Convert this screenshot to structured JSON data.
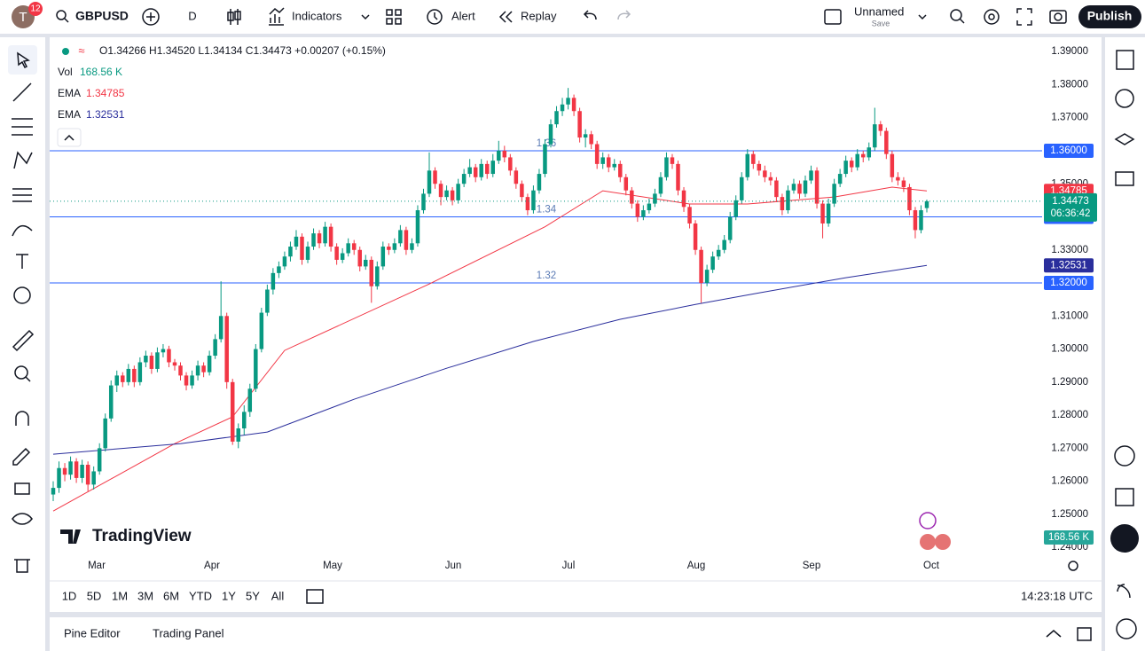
{
  "header": {
    "avatar": "T",
    "badge": "12",
    "symbol": "GBPUSD",
    "interval": "D",
    "indicators": "Indicators",
    "alert": "Alert",
    "replay": "Replay",
    "layout_name": "Unnamed",
    "layout_status": "Save",
    "publish": "Publish"
  },
  "legend": {
    "ohlc": "O1.34266 H1.34520 L1.34134 C1.34473 +0.00207 (+0.15%)",
    "volume": {
      "label": "Vol",
      "value": "168.56 K"
    },
    "ema": [
      {
        "label": "EMA",
        "value": "1.34785",
        "color": "#f23645"
      },
      {
        "label": "EMA",
        "value": "1.32531",
        "color": "#2a2e9c"
      }
    ]
  },
  "chart_data": {
    "type": "candlestick",
    "ylim": [
      1.2379,
      1.3938
    ],
    "yticks": [
      {
        "value": 1.39,
        "label": "1.39000"
      },
      {
        "value": 1.38,
        "label": "1.38000"
      },
      {
        "value": 1.37,
        "label": "1.37000"
      },
      {
        "value": 1.35,
        "label": "1.35000"
      },
      {
        "value": 1.33,
        "label": "1.33000"
      },
      {
        "value": 1.31,
        "label": "1.31000"
      },
      {
        "value": 1.3,
        "label": "1.30000"
      },
      {
        "value": 1.29,
        "label": "1.29000"
      },
      {
        "value": 1.28,
        "label": "1.28000"
      },
      {
        "value": 1.27,
        "label": "1.27000"
      },
      {
        "value": 1.26,
        "label": "1.26000"
      },
      {
        "value": 1.25,
        "label": "1.25000"
      },
      {
        "value": 1.24,
        "label": "1.24000"
      }
    ],
    "x_labels": [
      "Mar",
      "Apr",
      "May",
      "Jun",
      "Jul",
      "Aug",
      "Sep",
      "Oct"
    ],
    "up_color": "#089981",
    "down_color": "#f23645",
    "candles": [
      [
        1.256,
        1.26,
        1.254,
        1.258
      ],
      [
        1.258,
        1.266,
        1.2565,
        1.264
      ],
      [
        1.264,
        1.2655,
        1.26,
        1.262
      ],
      [
        1.262,
        1.2675,
        1.2605,
        1.266
      ],
      [
        1.266,
        1.267,
        1.2595,
        1.261
      ],
      [
        1.261,
        1.2665,
        1.2595,
        1.265
      ],
      [
        1.265,
        1.266,
        1.257,
        1.259
      ],
      [
        1.259,
        1.2645,
        1.2575,
        1.263
      ],
      [
        1.263,
        1.2715,
        1.262,
        1.27
      ],
      [
        1.27,
        1.2805,
        1.269,
        1.279
      ],
      [
        1.279,
        1.2905,
        1.278,
        1.289
      ],
      [
        1.289,
        1.2935,
        1.287,
        1.292
      ],
      [
        1.292,
        1.293,
        1.2885,
        1.29
      ],
      [
        1.29,
        1.2955,
        1.289,
        1.294
      ],
      [
        1.294,
        1.295,
        1.2885,
        1.29
      ],
      [
        1.29,
        1.2975,
        1.289,
        1.296
      ],
      [
        1.296,
        1.2995,
        1.2945,
        1.298
      ],
      [
        1.298,
        1.299,
        1.2925,
        1.294
      ],
      [
        1.294,
        1.3005,
        1.293,
        1.299
      ],
      [
        1.299,
        1.3015,
        1.2975,
        1.3
      ],
      [
        1.3,
        1.301,
        1.2945,
        1.296
      ],
      [
        1.296,
        1.297,
        1.2935,
        1.295
      ],
      [
        1.295,
        1.296,
        1.2905,
        1.292
      ],
      [
        1.292,
        1.293,
        1.2875,
        1.289
      ],
      [
        1.289,
        1.2935,
        1.288,
        1.292
      ],
      [
        1.292,
        1.2965,
        1.2905,
        1.295
      ],
      [
        1.295,
        1.296,
        1.2915,
        1.293
      ],
      [
        1.293,
        1.2995,
        1.292,
        1.298
      ],
      [
        1.298,
        1.3045,
        1.297,
        1.303
      ],
      [
        1.303,
        1.3205,
        1.302,
        1.31
      ],
      [
        1.31,
        1.311,
        1.288,
        1.29
      ],
      [
        1.29,
        1.291,
        1.271,
        1.272
      ],
      [
        1.272,
        1.2775,
        1.27,
        1.276
      ],
      [
        1.276,
        1.283,
        1.274,
        1.281
      ],
      [
        1.281,
        1.2895,
        1.2795,
        1.288
      ],
      [
        1.288,
        1.3015,
        1.287,
        1.3
      ],
      [
        1.3,
        1.3125,
        1.299,
        1.311
      ],
      [
        1.311,
        1.3195,
        1.31,
        1.318
      ],
      [
        1.318,
        1.3245,
        1.3165,
        1.323
      ],
      [
        1.323,
        1.3265,
        1.3215,
        1.325
      ],
      [
        1.325,
        1.3295,
        1.324,
        1.328
      ],
      [
        1.328,
        1.3325,
        1.3265,
        1.331
      ],
      [
        1.331,
        1.336,
        1.33,
        1.334
      ],
      [
        1.334,
        1.335,
        1.3255,
        1.327
      ],
      [
        1.327,
        1.3325,
        1.326,
        1.331
      ],
      [
        1.331,
        1.3365,
        1.33,
        1.335
      ],
      [
        1.335,
        1.336,
        1.3305,
        1.332
      ],
      [
        1.332,
        1.3385,
        1.331,
        1.337
      ],
      [
        1.337,
        1.338,
        1.3295,
        1.331
      ],
      [
        1.331,
        1.332,
        1.3255,
        1.327
      ],
      [
        1.327,
        1.3305,
        1.326,
        1.329
      ],
      [
        1.329,
        1.3335,
        1.328,
        1.332
      ],
      [
        1.332,
        1.333,
        1.3285,
        1.33
      ],
      [
        1.33,
        1.331,
        1.3235,
        1.325
      ],
      [
        1.325,
        1.3285,
        1.324,
        1.327
      ],
      [
        1.327,
        1.328,
        1.314,
        1.319
      ],
      [
        1.319,
        1.3265,
        1.318,
        1.325
      ],
      [
        1.325,
        1.3325,
        1.324,
        1.331
      ],
      [
        1.331,
        1.332,
        1.3285,
        1.33
      ],
      [
        1.33,
        1.3335,
        1.329,
        1.332
      ],
      [
        1.332,
        1.3375,
        1.331,
        1.336
      ],
      [
        1.336,
        1.337,
        1.3285,
        1.33
      ],
      [
        1.33,
        1.3335,
        1.329,
        1.332
      ],
      [
        1.332,
        1.3435,
        1.331,
        1.342
      ],
      [
        1.342,
        1.3485,
        1.341,
        1.347
      ],
      [
        1.347,
        1.3595,
        1.346,
        1.354
      ],
      [
        1.354,
        1.355,
        1.3485,
        1.35
      ],
      [
        1.35,
        1.351,
        1.3435,
        1.346
      ],
      [
        1.346,
        1.3495,
        1.345,
        1.348
      ],
      [
        1.348,
        1.349,
        1.3435,
        1.345
      ],
      [
        1.345,
        1.3515,
        1.344,
        1.35
      ],
      [
        1.35,
        1.3545,
        1.349,
        1.353
      ],
      [
        1.353,
        1.3575,
        1.352,
        1.355
      ],
      [
        1.355,
        1.356,
        1.3505,
        1.352
      ],
      [
        1.352,
        1.3575,
        1.351,
        1.356
      ],
      [
        1.356,
        1.357,
        1.3515,
        1.353
      ],
      [
        1.353,
        1.359,
        1.352,
        1.357
      ],
      [
        1.357,
        1.363,
        1.356,
        1.36
      ],
      [
        1.36,
        1.3615,
        1.3565,
        1.358
      ],
      [
        1.358,
        1.359,
        1.3525,
        1.354
      ],
      [
        1.354,
        1.355,
        1.3485,
        1.35
      ],
      [
        1.35,
        1.351,
        1.3445,
        1.346
      ],
      [
        1.346,
        1.347,
        1.3405,
        1.342
      ],
      [
        1.342,
        1.3495,
        1.341,
        1.348
      ],
      [
        1.348,
        1.3545,
        1.347,
        1.353
      ],
      [
        1.353,
        1.3635,
        1.352,
        1.362
      ],
      [
        1.362,
        1.3695,
        1.361,
        1.368
      ],
      [
        1.368,
        1.3735,
        1.367,
        1.372
      ],
      [
        1.372,
        1.376,
        1.3705,
        1.374
      ],
      [
        1.374,
        1.379,
        1.3725,
        1.376
      ],
      [
        1.376,
        1.377,
        1.3705,
        1.372
      ],
      [
        1.372,
        1.373,
        1.3625,
        1.364
      ],
      [
        1.364,
        1.3665,
        1.361,
        1.365
      ],
      [
        1.365,
        1.366,
        1.3605,
        1.362
      ],
      [
        1.362,
        1.363,
        1.3545,
        1.356
      ],
      [
        1.356,
        1.3595,
        1.3545,
        1.358
      ],
      [
        1.358,
        1.359,
        1.3535,
        1.355
      ],
      [
        1.355,
        1.3575,
        1.354,
        1.356
      ],
      [
        1.356,
        1.357,
        1.3505,
        1.352
      ],
      [
        1.352,
        1.353,
        1.3465,
        1.348
      ],
      [
        1.348,
        1.349,
        1.3425,
        1.344
      ],
      [
        1.344,
        1.345,
        1.3385,
        1.34
      ],
      [
        1.34,
        1.3435,
        1.339,
        1.342
      ],
      [
        1.342,
        1.3455,
        1.341,
        1.344
      ],
      [
        1.344,
        1.3485,
        1.343,
        1.347
      ],
      [
        1.347,
        1.3535,
        1.346,
        1.352
      ],
      [
        1.352,
        1.3595,
        1.351,
        1.358
      ],
      [
        1.358,
        1.359,
        1.3545,
        1.356
      ],
      [
        1.356,
        1.357,
        1.3465,
        1.348
      ],
      [
        1.348,
        1.349,
        1.3415,
        1.343
      ],
      [
        1.343,
        1.344,
        1.3365,
        1.338
      ],
      [
        1.338,
        1.339,
        1.3285,
        1.33
      ],
      [
        1.33,
        1.331,
        1.314,
        1.32
      ],
      [
        1.32,
        1.3255,
        1.319,
        1.324
      ],
      [
        1.324,
        1.3295,
        1.323,
        1.328
      ],
      [
        1.328,
        1.3315,
        1.327,
        1.33
      ],
      [
        1.33,
        1.3345,
        1.329,
        1.333
      ],
      [
        1.333,
        1.3415,
        1.332,
        1.34
      ],
      [
        1.34,
        1.3465,
        1.339,
        1.345
      ],
      [
        1.345,
        1.3535,
        1.344,
        1.352
      ],
      [
        1.352,
        1.3605,
        1.351,
        1.359
      ],
      [
        1.359,
        1.36,
        1.3545,
        1.356
      ],
      [
        1.356,
        1.357,
        1.3525,
        1.354
      ],
      [
        1.354,
        1.3555,
        1.3505,
        1.352
      ],
      [
        1.352,
        1.3535,
        1.3495,
        1.351
      ],
      [
        1.351,
        1.352,
        1.3445,
        1.346
      ],
      [
        1.346,
        1.347,
        1.3405,
        1.342
      ],
      [
        1.342,
        1.3495,
        1.341,
        1.348
      ],
      [
        1.348,
        1.3515,
        1.347,
        1.35
      ],
      [
        1.35,
        1.351,
        1.3455,
        1.347
      ],
      [
        1.347,
        1.3525,
        1.346,
        1.351
      ],
      [
        1.351,
        1.3555,
        1.35,
        1.354
      ],
      [
        1.354,
        1.355,
        1.3425,
        1.344
      ],
      [
        1.344,
        1.345,
        1.3335,
        1.338
      ],
      [
        1.338,
        1.3455,
        1.337,
        1.344
      ],
      [
        1.344,
        1.3515,
        1.343,
        1.35
      ],
      [
        1.35,
        1.3545,
        1.349,
        1.353
      ],
      [
        1.353,
        1.3585,
        1.352,
        1.357
      ],
      [
        1.357,
        1.358,
        1.3535,
        1.355
      ],
      [
        1.355,
        1.3605,
        1.354,
        1.359
      ],
      [
        1.359,
        1.36,
        1.3565,
        1.358
      ],
      [
        1.358,
        1.3625,
        1.357,
        1.361
      ],
      [
        1.361,
        1.373,
        1.36,
        1.368
      ],
      [
        1.368,
        1.369,
        1.3645,
        1.366
      ],
      [
        1.366,
        1.367,
        1.3575,
        1.359
      ],
      [
        1.359,
        1.36,
        1.3505,
        1.352
      ],
      [
        1.352,
        1.3535,
        1.3495,
        1.351
      ],
      [
        1.351,
        1.352,
        1.3475,
        1.349
      ],
      [
        1.349,
        1.35,
        1.3405,
        1.342
      ],
      [
        1.342,
        1.343,
        1.3335,
        1.336
      ],
      [
        1.336,
        1.3435,
        1.335,
        1.342
      ],
      [
        1.34266,
        1.3452,
        1.34134,
        1.34473
      ]
    ],
    "ema_lines": [
      {
        "color": "#f23645",
        "points": [
          [
            0,
            1.251
          ],
          [
            21,
            1.2714
          ],
          [
            31,
            1.2795
          ],
          [
            40,
            1.2996
          ],
          [
            65,
            1.3197
          ],
          [
            85,
            1.337
          ],
          [
            95,
            1.3479
          ],
          [
            110,
            1.3439
          ],
          [
            120,
            1.3439
          ],
          [
            135,
            1.346
          ],
          [
            145,
            1.349
          ],
          [
            151,
            1.34785
          ]
        ]
      },
      {
        "color": "#2a2e9c",
        "points": [
          [
            0,
            1.2682
          ],
          [
            22,
            1.2714
          ],
          [
            37,
            1.2749
          ],
          [
            52,
            1.2848
          ],
          [
            68,
            1.2942
          ],
          [
            83,
            1.3023
          ],
          [
            98,
            1.309
          ],
          [
            111,
            1.3135
          ],
          [
            122,
            1.317
          ],
          [
            137,
            1.3216
          ],
          [
            151,
            1.32531
          ]
        ]
      }
    ],
    "levels": [
      {
        "value": 1.36,
        "label": "1.36000",
        "color": "#2962ff"
      },
      {
        "value": 1.34,
        "label": "1.34000",
        "color": "#2962ff"
      },
      {
        "value": 1.32,
        "label": "1.32000",
        "color": "#2962ff"
      }
    ],
    "countdown": "06:36:42",
    "watermark": "TradingView"
  },
  "range_bar": {
    "ranges": [
      "1D",
      "5D",
      "1M",
      "3M",
      "6M",
      "YTD",
      "1Y",
      "5Y",
      "All"
    ],
    "clock": "14:23:18 UTC"
  },
  "bottom_panel": {
    "tabs": [
      "Pine Editor",
      "Trading Panel"
    ]
  }
}
